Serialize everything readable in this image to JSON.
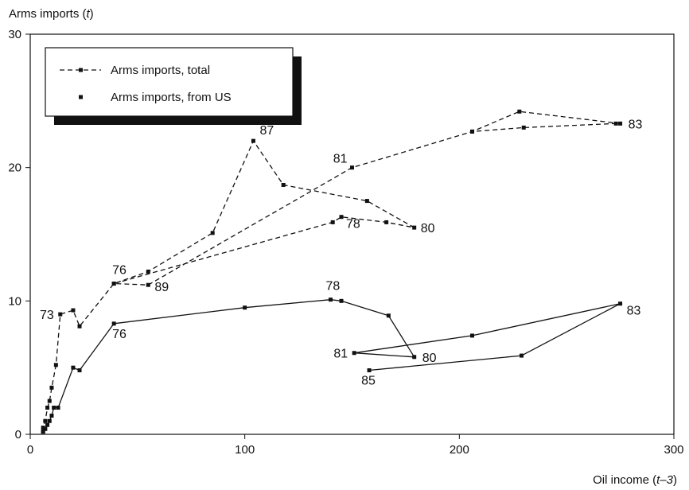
{
  "chart_data": {
    "type": "line",
    "xlabel": "Oil income (t–3)",
    "ylabel": "Arms imports (t)",
    "xlim": [
      0,
      300
    ],
    "ylim": [
      0,
      30
    ],
    "xticks": [
      0,
      100,
      200,
      300
    ],
    "yticks": [
      0,
      10,
      20,
      30
    ],
    "grid": false,
    "legend_position": "top-left",
    "series": [
      {
        "name": "Arms imports, total",
        "style": "dashed",
        "color": "#111111",
        "points": [
          [
            6,
            0.2
          ],
          [
            6,
            0.5
          ],
          [
            7,
            1.0
          ],
          [
            8,
            2.0
          ],
          [
            9,
            2.5
          ],
          [
            10,
            3.5
          ],
          [
            12,
            5.2
          ],
          [
            14,
            9.0
          ],
          [
            20,
            9.3
          ],
          [
            23,
            8.1
          ],
          [
            39,
            11.3
          ],
          [
            55,
            12.2
          ],
          [
            85,
            15.1
          ],
          [
            104,
            22.0
          ],
          [
            118,
            18.7
          ],
          [
            157,
            17.5
          ],
          [
            179,
            15.5
          ],
          [
            166,
            15.9
          ],
          [
            145,
            16.3
          ],
          [
            141,
            15.9
          ],
          [
            39,
            11.3
          ],
          [
            55,
            11.2
          ],
          [
            150,
            20.0
          ],
          [
            206,
            22.7
          ],
          [
            228,
            24.2
          ],
          [
            275,
            23.3
          ],
          [
            273,
            23.3
          ],
          [
            230,
            23.0
          ],
          [
            206,
            22.7
          ]
        ]
      },
      {
        "name": "Arms imports, from US",
        "style": "solid",
        "color": "#111111",
        "points": [
          [
            6,
            0.2
          ],
          [
            7,
            0.4
          ],
          [
            8,
            0.7
          ],
          [
            9,
            1.0
          ],
          [
            10,
            1.4
          ],
          [
            11,
            2.0
          ],
          [
            13,
            2.0
          ],
          [
            20,
            5.0
          ],
          [
            23,
            4.8
          ],
          [
            39,
            8.3
          ],
          [
            100,
            9.5
          ],
          [
            140,
            10.1
          ],
          [
            145,
            10.0
          ],
          [
            167,
            8.9
          ],
          [
            179,
            5.8
          ],
          [
            151,
            6.1
          ],
          [
            206,
            7.4
          ],
          [
            275,
            9.8
          ],
          [
            229,
            5.9
          ],
          [
            158,
            4.8
          ]
        ]
      }
    ],
    "point_labels": [
      {
        "text": "87",
        "x": 104,
        "y": 22.0
      },
      {
        "text": "81",
        "x": 150,
        "y": 20.0
      },
      {
        "text": "83",
        "x": 275,
        "y": 23.3
      },
      {
        "text": "78",
        "x": 145,
        "y": 16.3
      },
      {
        "text": "80",
        "x": 179,
        "y": 15.5
      },
      {
        "text": "76",
        "x": 39,
        "y": 11.3
      },
      {
        "text": "89",
        "x": 55,
        "y": 11.2
      },
      {
        "text": "73",
        "x": 14,
        "y": 9.0
      },
      {
        "text": "78",
        "x": 140,
        "y": 10.1
      },
      {
        "text": "76",
        "x": 39,
        "y": 8.3
      },
      {
        "text": "81",
        "x": 151,
        "y": 6.1
      },
      {
        "text": "80",
        "x": 179,
        "y": 5.8
      },
      {
        "text": "85",
        "x": 158,
        "y": 4.8
      },
      {
        "text": "83",
        "x": 275,
        "y": 9.8
      }
    ]
  }
}
